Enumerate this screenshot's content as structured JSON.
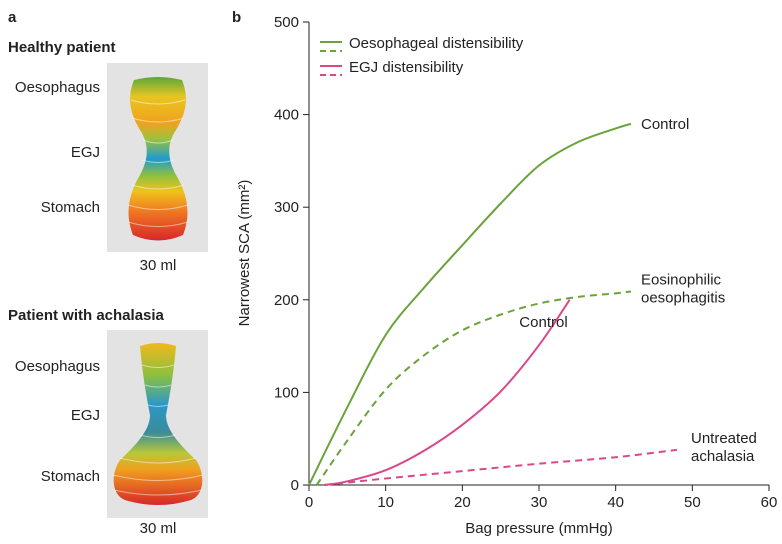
{
  "panel_a": {
    "label": "a",
    "patients": [
      {
        "title": "Healthy patient",
        "labels": [
          "Oesophagus",
          "EGJ",
          "Stomach"
        ],
        "volume": "30 ml"
      },
      {
        "title": "Patient with achalasia",
        "labels": [
          "Oesophagus",
          "EGJ",
          "Stomach"
        ],
        "volume": "30 ml"
      }
    ]
  },
  "chart_data": {
    "type": "line",
    "panel_label": "b",
    "xlabel": "Bag pressure (mmHg)",
    "ylabel": "Narrowest SCA (mm²)",
    "xlim": [
      0,
      60
    ],
    "xticks": [
      0,
      10,
      20,
      30,
      40,
      50,
      60
    ],
    "ylim": [
      0,
      500
    ],
    "yticks": [
      0,
      100,
      200,
      300,
      400,
      500
    ],
    "legend": [
      {
        "label": "Oesophageal distensibility",
        "color": "#6aa33c"
      },
      {
        "label": "EGJ distensibility",
        "color": "#d9488a"
      }
    ],
    "series": [
      {
        "name": "Control",
        "color": "#6aa33c",
        "dash": false,
        "x": [
          0,
          5,
          10,
          15,
          20,
          25,
          30,
          35,
          40,
          42
        ],
        "values": [
          0,
          84,
          162,
          213,
          259,
          304,
          345,
          370,
          385,
          390
        ]
      },
      {
        "name": "Eosinophilic oesophagitis",
        "color": "#6aa33c",
        "dash": true,
        "x": [
          1,
          5,
          10,
          15,
          20,
          25,
          30,
          35,
          40,
          42
        ],
        "values": [
          0,
          48,
          103,
          140,
          167,
          184,
          196,
          203,
          207,
          209
        ]
      },
      {
        "name": "Control",
        "color": "#d9488a",
        "dash": false,
        "x": [
          2,
          5,
          10,
          15,
          20,
          25,
          30,
          34
        ],
        "values": [
          0,
          4,
          16,
          37,
          65,
          101,
          151,
          200
        ]
      },
      {
        "name": "Untreated achalasia",
        "color": "#d9488a",
        "dash": true,
        "x": [
          2,
          10,
          20,
          30,
          40,
          48
        ],
        "values": [
          0,
          7,
          15,
          23,
          30,
          38
        ]
      }
    ]
  }
}
